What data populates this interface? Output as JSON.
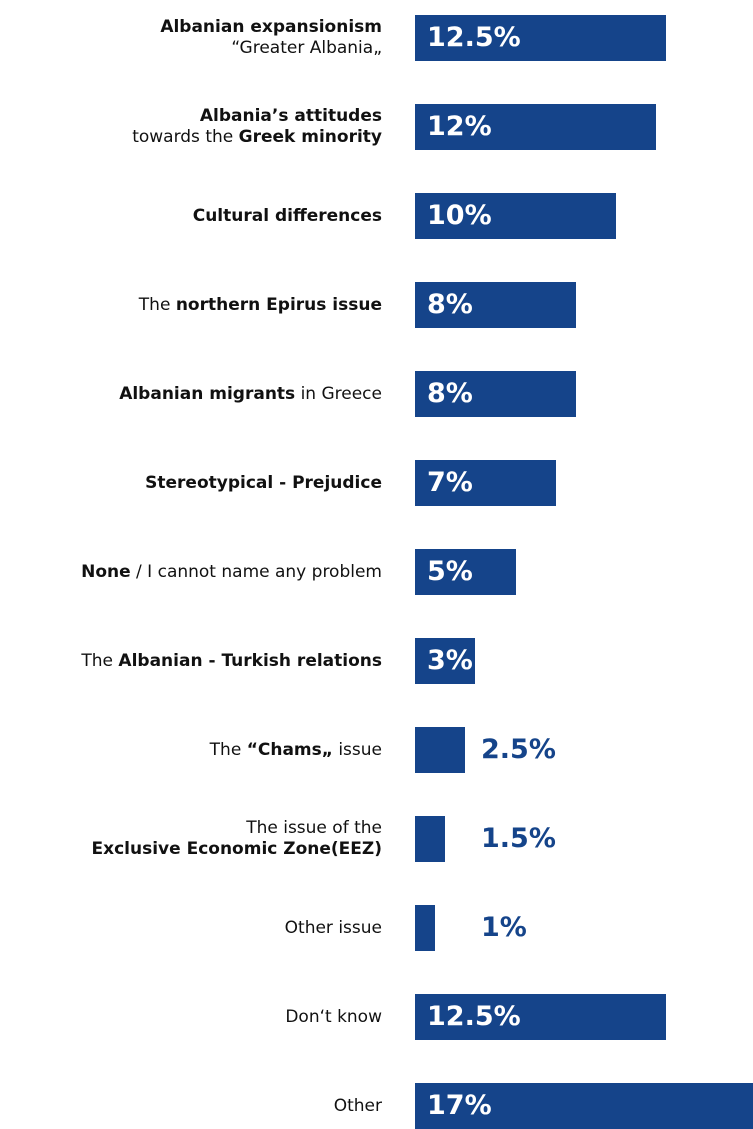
{
  "chart_data": {
    "type": "bar",
    "orientation": "horizontal",
    "bar_color": "#15448a",
    "categories": [
      "Albanian expansionism “Greater Albania„",
      "Albania’s attitudes towards the Greek minority",
      "Cultural differences",
      "The northern Epirus issue",
      "Albanian migrants in Greece",
      "Stereotypical - Prejudice",
      "None / I cannot name any problem",
      "The Albanian - Turkish relations",
      "The “Chams„ issue",
      "The issue of the Exclusive Economic Zone(EEZ)",
      "Other issue",
      "Don‘t know",
      "Other"
    ],
    "values": [
      12.5,
      12,
      10,
      8,
      8,
      7,
      5,
      3,
      2.5,
      1.5,
      1,
      12.5,
      17
    ],
    "value_labels": [
      "12.5%",
      "12%",
      "10%",
      "8%",
      "8%",
      "7%",
      "5%",
      "3%",
      "2.5%",
      "1.5%",
      "1%",
      "12.5%",
      "17%"
    ],
    "label_parts": [
      [
        [
          {
            "t": "Albanian expansionism",
            "b": true
          }
        ],
        [
          {
            "t": "“Greater Albania„",
            "b": false
          }
        ]
      ],
      [
        [
          {
            "t": "Albania’s attitudes",
            "b": true
          }
        ],
        [
          {
            "t": "towards the ",
            "b": false
          },
          {
            "t": "Greek minority",
            "b": true
          }
        ]
      ],
      [
        [
          {
            "t": "Cultural differences",
            "b": true
          }
        ]
      ],
      [
        [
          {
            "t": "The ",
            "b": false
          },
          {
            "t": "northern Epirus issue",
            "b": true
          }
        ]
      ],
      [
        [
          {
            "t": "Albanian migrants",
            "b": true
          },
          {
            "t": " in Greece",
            "b": false
          }
        ]
      ],
      [
        [
          {
            "t": "Stereotypical - Prejudice",
            "b": true
          }
        ]
      ],
      [
        [
          {
            "t": "None",
            "b": true
          },
          {
            "t": " / I cannot name any problem",
            "b": false
          }
        ]
      ],
      [
        [
          {
            "t": "The ",
            "b": false
          },
          {
            "t": "Albanian - Turkish relations",
            "b": true
          }
        ]
      ],
      [
        [
          {
            "t": "The ",
            "b": false
          },
          {
            "t": "“Chams„",
            "b": true
          },
          {
            "t": " issue",
            "b": false
          }
        ]
      ],
      [
        [
          {
            "t": "The issue of the",
            "b": false
          }
        ],
        [
          {
            "t": "Exclusive Economic Zone(EEZ)",
            "b": true
          }
        ]
      ],
      [
        [
          {
            "t": "Other issue",
            "b": false
          }
        ]
      ],
      [
        [
          {
            "t": "Don‘t know",
            "b": false
          }
        ]
      ],
      [
        [
          {
            "t": "Other",
            "b": false
          }
        ]
      ]
    ]
  }
}
